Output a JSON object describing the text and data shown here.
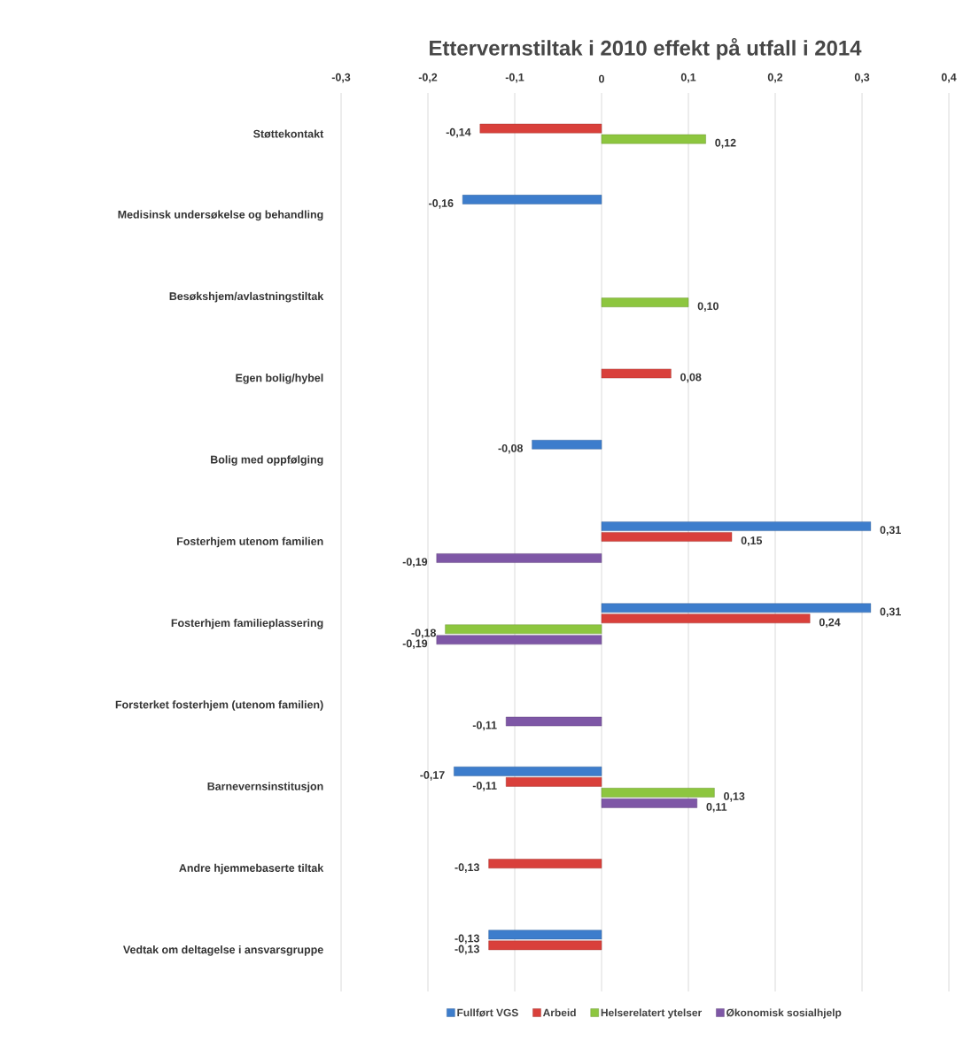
{
  "chart_data": {
    "type": "bar",
    "orientation": "horizontal",
    "title": "Ettervernstiltak i 2010 effekt på utfall i 2014",
    "categories": [
      "Støttekontakt",
      "Medisinsk undersøkelse og behandling",
      "Besøkshjem/avlastningstiltak",
      "Egen bolig/hybel",
      "Bolig med oppfølging",
      "Fosterhjem utenom familien",
      "Fosterhjem familieplassering",
      "Forsterket fosterhjem (utenom familien)",
      "Barnevernsinstitusjon",
      "Andre hjemmebaserte tiltak",
      "Vedtak om deltagelse i ansvarsgruppe"
    ],
    "series": [
      {
        "name": "Fullført VGS",
        "color": "#3d7dcc",
        "values": [
          null,
          -0.16,
          null,
          null,
          -0.08,
          0.31,
          0.31,
          null,
          -0.17,
          null,
          -0.13
        ],
        "value_labels": [
          null,
          "-0,16",
          null,
          null,
          "-0,08",
          "0,31",
          "0,31",
          null,
          "-0,17",
          null,
          "-0,13"
        ]
      },
      {
        "name": "Arbeid",
        "color": "#d9403b",
        "values": [
          -0.14,
          null,
          null,
          0.08,
          null,
          0.15,
          0.24,
          null,
          -0.11,
          -0.13,
          -0.13
        ],
        "value_labels": [
          "-0,14",
          null,
          null,
          "0,08",
          null,
          "0,15",
          "0,24",
          null,
          "-0,11",
          "-0,13",
          "-0,13"
        ]
      },
      {
        "name": "Helserelatert ytelser",
        "color": "#8dc63f",
        "values": [
          0.12,
          null,
          0.1,
          null,
          null,
          null,
          -0.18,
          null,
          0.13,
          null,
          null
        ],
        "value_labels": [
          "0,12",
          null,
          "0,10",
          null,
          null,
          null,
          "-0,18",
          null,
          "0,13",
          null,
          null
        ]
      },
      {
        "name": "Økonomisk sosialhjelp",
        "color": "#7e57a6",
        "values": [
          null,
          null,
          null,
          null,
          null,
          -0.19,
          -0.19,
          -0.11,
          0.11,
          null,
          null
        ],
        "value_labels": [
          null,
          null,
          null,
          null,
          null,
          "-0,19",
          "-0,19",
          "-0,11",
          "0,11",
          null,
          null
        ]
      }
    ],
    "xlim": [
      -0.3,
      0.4
    ],
    "xticks": [
      {
        "value": -0.3,
        "label": "-0,3"
      },
      {
        "value": -0.2,
        "label": "-0,2"
      },
      {
        "value": -0.1,
        "label": "-0,1"
      },
      {
        "value": 0,
        "label": "0"
      },
      {
        "value": 0.1,
        "label": "0,1"
      },
      {
        "value": 0.2,
        "label": "0,2"
      },
      {
        "value": 0.3,
        "label": "0,3"
      },
      {
        "value": 0.4,
        "label": "0,4"
      }
    ],
    "grid": "x",
    "legend": "bottom"
  }
}
